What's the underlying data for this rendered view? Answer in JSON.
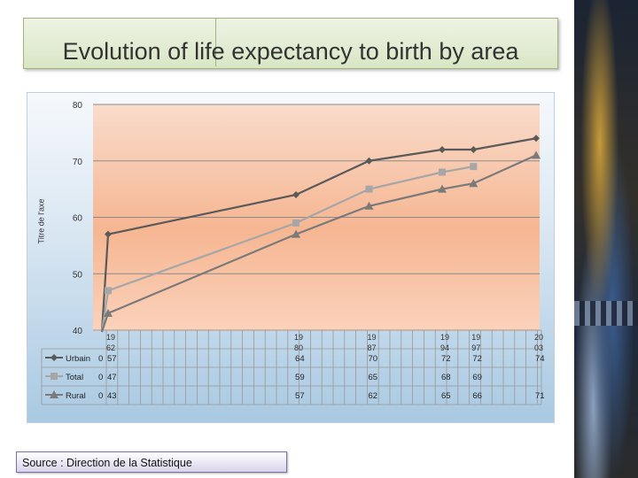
{
  "slide": {
    "title": "Evolution of life expectancy to birth by area",
    "source": "Source : Direction de la Statistique"
  },
  "chart_data": {
    "type": "line",
    "title": "",
    "ylabel": "Titre de l'axe",
    "xlabel": "",
    "ylim": [
      40,
      80
    ],
    "yticks": [
      "80",
      "70",
      "60",
      "50",
      "40"
    ],
    "grid": true,
    "legend": "data-table",
    "categories": [
      "",
      "19 62",
      "19 80",
      "19 87",
      "19 94",
      "19 97",
      "20 03"
    ],
    "category_years": [
      null,
      1962,
      1980,
      1987,
      1994,
      1997,
      2003
    ],
    "series": [
      {
        "name": "Urbain",
        "marker": "diamond",
        "color": "#5a5a5a",
        "values": [
          0,
          57,
          64,
          70,
          72,
          72,
          74
        ]
      },
      {
        "name": "Total",
        "marker": "square",
        "color": "#a6a6a6",
        "values": [
          0,
          47,
          59,
          65,
          68,
          69,
          null
        ]
      },
      {
        "name": "Rural",
        "marker": "triangle",
        "color": "#7a7a7a",
        "values": [
          0,
          43,
          57,
          62,
          65,
          66,
          71
        ]
      }
    ]
  }
}
